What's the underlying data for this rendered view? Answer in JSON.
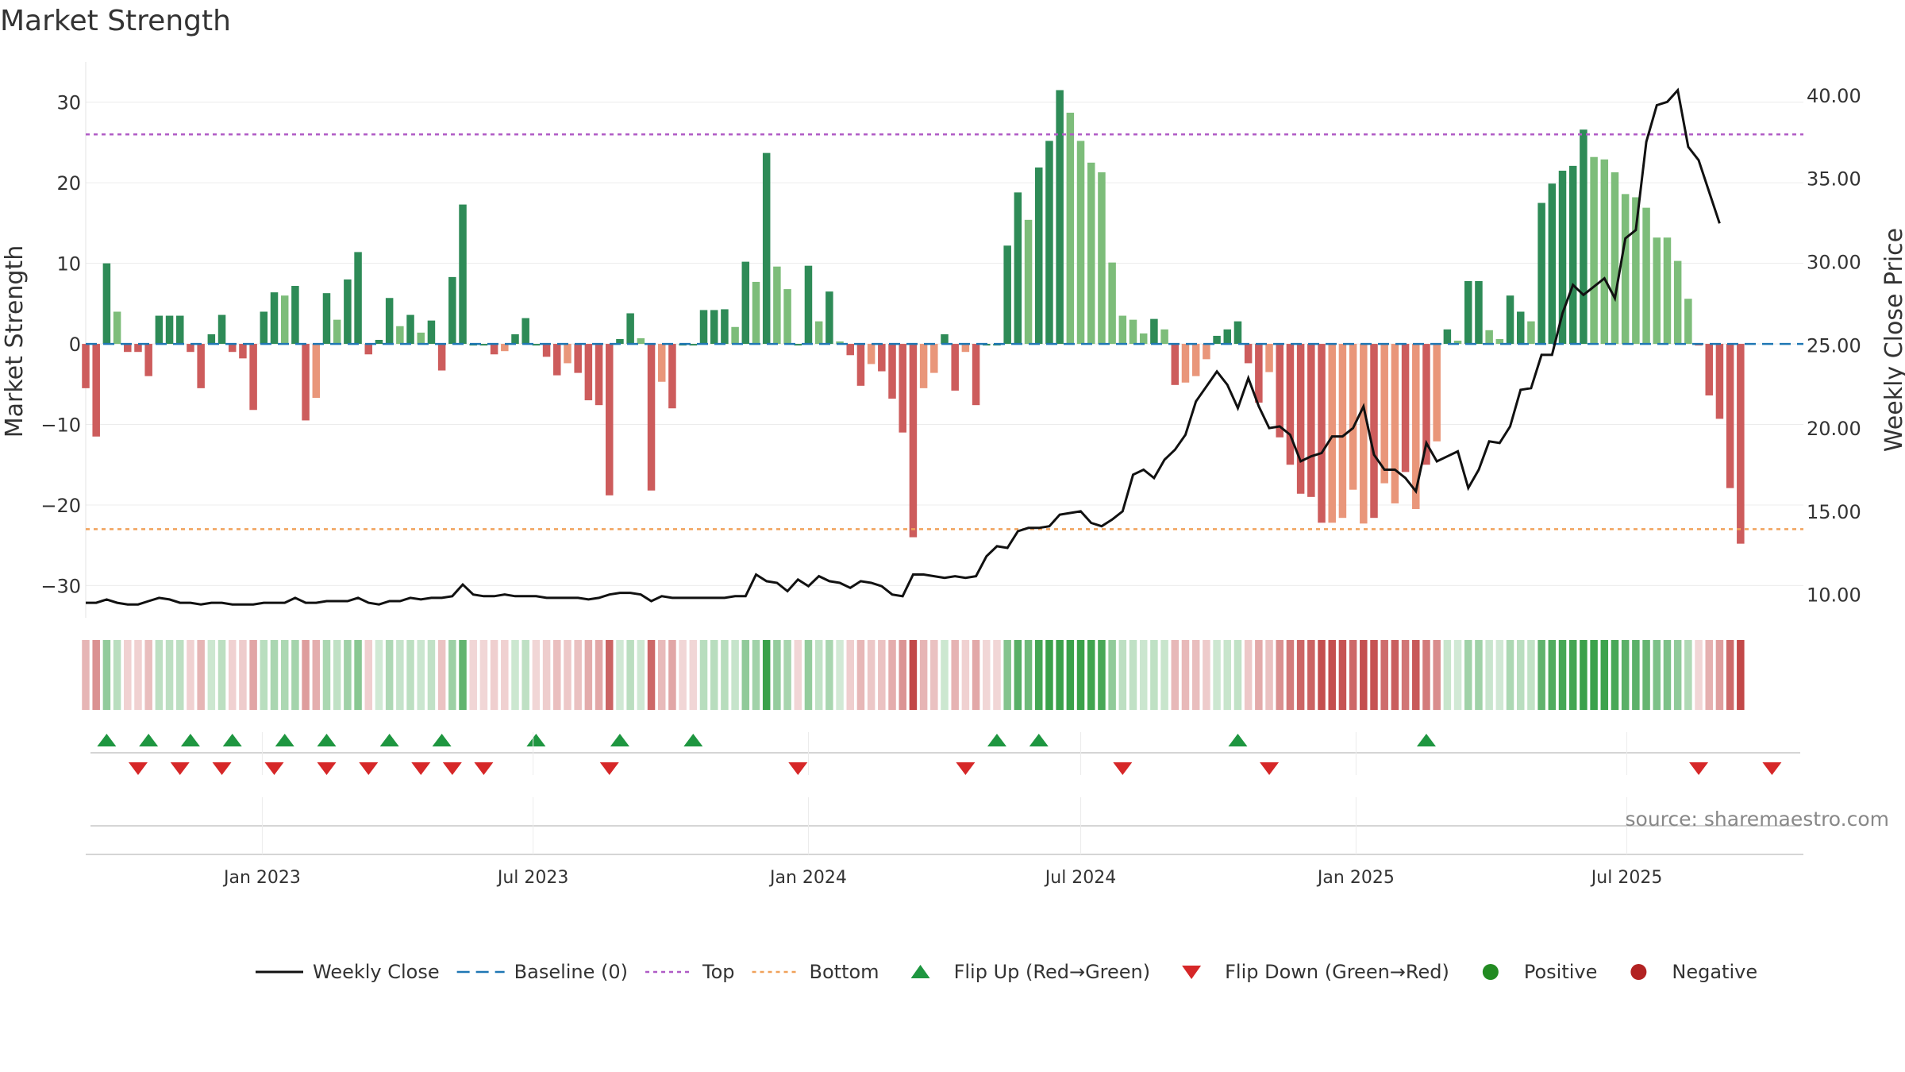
{
  "chart_data": {
    "type": "bar",
    "title": "Market Strength",
    "ylabel": "Market Strength",
    "y2label": "Weekly Close Price",
    "ylim": [
      -34,
      35
    ],
    "y2lim": [
      8.6,
      42.0
    ],
    "yticks": [
      -30,
      -20,
      -10,
      0,
      10,
      20,
      30
    ],
    "yticklabels": [
      "−30",
      "−20",
      "−10",
      "0",
      "10",
      "20",
      "30"
    ],
    "y2ticks": [
      10,
      15,
      20,
      25,
      30,
      35,
      40
    ],
    "y2ticklabels": [
      "10.00",
      "15.00",
      "20.00",
      "25.00",
      "30.00",
      "35.00",
      "40.00"
    ],
    "xrange": [
      "2022-09-05",
      "2025-10-27"
    ],
    "xticks": [
      {
        "date": "2023-01-01",
        "label": "Jan 2023"
      },
      {
        "date": "2023-07-01",
        "label": "Jul 2023"
      },
      {
        "date": "2024-01-01",
        "label": "Jan 2024"
      },
      {
        "date": "2024-07-01",
        "label": "Jul 2024"
      },
      {
        "date": "2025-01-01",
        "label": "Jan 2025"
      },
      {
        "date": "2025-07-01",
        "label": "Jul 2025"
      }
    ],
    "start_date": "2022-09-05",
    "interval_days": 7,
    "top": 26,
    "bottom": -23,
    "strength": [
      -5.5,
      -11.5,
      10,
      4,
      -1,
      -1,
      -4,
      3.5,
      3.5,
      3.5,
      -1,
      -5.5,
      1.2,
      3.6,
      -1,
      -1.8,
      -8.2,
      4,
      6.4,
      6,
      7.2,
      -9.5,
      -6.7,
      6.3,
      3,
      8,
      11.4,
      -1.3,
      0.5,
      5.7,
      2.2,
      3.6,
      1.4,
      2.9,
      -3.3,
      8.3,
      17.3,
      -0.2,
      -0.2,
      -1.3,
      -0.9,
      1.2,
      3.2,
      -0.2,
      -1.6,
      -3.9,
      -2.4,
      -3.6,
      -7,
      -7.6,
      -18.8,
      0.6,
      3.8,
      0.7,
      -18.2,
      -4.7,
      -8,
      -0.2,
      -0.2,
      4.2,
      4.2,
      4.3,
      2.1,
      10.2,
      7.7,
      23.7,
      9.6,
      6.8,
      -0.2,
      9.7,
      2.8,
      6.5,
      0.3,
      -1.4,
      -5.2,
      -2.5,
      -3.4,
      -6.8,
      -11,
      -24,
      -5.5,
      -3.6,
      1.2,
      -5.8,
      -1,
      -7.6,
      -0.2,
      -0.2,
      12.2,
      18.8,
      15.4,
      21.9,
      25.2,
      31.5,
      28.7,
      25.2,
      22.5,
      21.3,
      10.1,
      3.5,
      3,
      1.3,
      3.1,
      1.8,
      -5.1,
      -4.8,
      -4,
      -1.9,
      1,
      1.8,
      2.8,
      -2.4,
      -7.3,
      -3.5,
      -11.6,
      -15,
      -18.6,
      -19,
      -22.2,
      -22.2,
      -21.6,
      -18.1,
      -22.3,
      -21.6,
      -17.3,
      -19.8,
      -15.9,
      -20.5,
      -15,
      -12.1,
      1.8,
      0.4,
      7.8,
      7.8,
      1.7,
      0.6,
      6,
      4,
      2.8,
      17.5,
      19.9,
      21.5,
      22.1,
      26.6,
      23.2,
      22.9,
      21.3,
      18.6,
      18.2,
      16.9,
      13.2,
      13.2,
      10.3,
      5.6,
      -0.2,
      -6.4,
      -9.3,
      -17.9,
      -24.8
    ],
    "style": [
      2,
      2,
      0,
      1,
      2,
      2,
      2,
      0,
      0,
      0,
      2,
      2,
      0,
      0,
      2,
      2,
      2,
      0,
      0,
      1,
      0,
      2,
      3,
      0,
      1,
      0,
      0,
      2,
      0,
      0,
      1,
      0,
      1,
      0,
      2,
      0,
      0,
      0,
      0,
      2,
      3,
      0,
      0,
      0,
      2,
      2,
      3,
      2,
      2,
      2,
      2,
      0,
      0,
      1,
      2,
      3,
      2,
      0,
      0,
      0,
      0,
      0,
      1,
      0,
      1,
      0,
      1,
      1,
      0,
      0,
      1,
      0,
      1,
      2,
      2,
      3,
      2,
      2,
      2,
      2,
      3,
      3,
      0,
      2,
      3,
      2,
      0,
      0,
      0,
      0,
      1,
      0,
      0,
      0,
      1,
      1,
      1,
      1,
      1,
      1,
      1,
      1,
      0,
      1,
      2,
      3,
      3,
      3,
      0,
      0,
      0,
      2,
      2,
      3,
      2,
      2,
      2,
      2,
      2,
      3,
      3,
      3,
      3,
      2,
      3,
      3,
      2,
      3,
      2,
      3,
      0,
      1,
      0,
      0,
      1,
      1,
      0,
      0,
      1,
      0,
      0,
      0,
      0,
      0,
      1,
      1,
      1,
      1,
      1,
      1,
      1,
      1,
      1,
      1,
      2,
      2,
      2,
      2,
      2
    ],
    "weekly_close": [
      9.5,
      9.5,
      9.7,
      9.5,
      9.4,
      9.4,
      9.6,
      9.8,
      9.7,
      9.5,
      9.5,
      9.4,
      9.5,
      9.5,
      9.4,
      9.4,
      9.4,
      9.5,
      9.5,
      9.5,
      9.8,
      9.5,
      9.5,
      9.6,
      9.6,
      9.6,
      9.8,
      9.5,
      9.4,
      9.6,
      9.6,
      9.8,
      9.7,
      9.8,
      9.8,
      9.9,
      10.6,
      10.0,
      9.9,
      9.9,
      10.0,
      9.9,
      9.9,
      9.9,
      9.8,
      9.8,
      9.8,
      9.8,
      9.7,
      9.8,
      10.0,
      10.1,
      10.1,
      10.0,
      9.6,
      9.9,
      9.8,
      9.8,
      9.8,
      9.8,
      9.8,
      9.8,
      9.9,
      9.9,
      11.2,
      10.8,
      10.7,
      10.2,
      10.9,
      10.5,
      11.1,
      10.8,
      10.7,
      10.4,
      10.8,
      10.7,
      10.5,
      10.0,
      9.9,
      11.2,
      11.2,
      11.1,
      11.0,
      11.1,
      11.0,
      11.1,
      12.3,
      12.9,
      12.8,
      13.8,
      14.0,
      14.0,
      14.1,
      14.8,
      14.9,
      15.0,
      14.3,
      14.1,
      14.5,
      15.0,
      17.2,
      17.5,
      17.0,
      18.1,
      18.7,
      19.6,
      21.6,
      22.5,
      23.4,
      22.6,
      21.2,
      23.0,
      21.3,
      20.0,
      20.1,
      19.6,
      18.0,
      18.3,
      18.5,
      19.5,
      19.5,
      20.0,
      21.3,
      18.4,
      17.5,
      17.5,
      17.0,
      16.2,
      19.1,
      18.0,
      18.3,
      18.6,
      16.4,
      17.5,
      19.2,
      19.1,
      20.1,
      22.3,
      22.4,
      24.4,
      24.4,
      26.9,
      28.6,
      28.0,
      28.5,
      29.0,
      27.8,
      31.4,
      31.9,
      37.2,
      39.4,
      39.6,
      40.3,
      36.9,
      36.1,
      34.2,
      32.3
    ],
    "flip_up": [
      "2022-09-19",
      "2022-10-17",
      "2022-11-14",
      "2022-12-12",
      "2023-01-16",
      "2023-02-13",
      "2023-03-27",
      "2023-05-01",
      "2023-07-03",
      "2023-08-28",
      "2023-10-16",
      "2024-05-06",
      "2024-06-03",
      "2024-10-14",
      "2025-02-17"
    ],
    "flip_down": [
      "2022-10-10",
      "2022-11-07",
      "2022-12-05",
      "2023-01-09",
      "2023-02-13",
      "2023-03-13",
      "2023-04-17",
      "2023-05-08",
      "2023-05-29",
      "2023-08-21",
      "2023-12-25",
      "2024-04-15",
      "2024-07-29",
      "2024-11-04",
      "2025-08-18",
      "2025-10-06"
    ],
    "legend": [
      {
        "label": "Weekly Close",
        "kind": "line"
      },
      {
        "label": "Baseline (0)",
        "kind": "dash"
      },
      {
        "label": "Top",
        "kind": "dot-purple"
      },
      {
        "label": "Bottom",
        "kind": "dot-orange"
      },
      {
        "label": "Flip Up (Red→Green)",
        "kind": "tri-up"
      },
      {
        "label": "Flip Down (Green→Red)",
        "kind": "tri-down"
      },
      {
        "label": "Positive",
        "kind": "dot-green"
      },
      {
        "label": "Negative",
        "kind": "dot-red"
      }
    ],
    "legend_position": "bottom-center",
    "grid": true,
    "colors": {
      "pos_dark": "#2e8b57",
      "pos_light": "#7dbd7a",
      "neg_dark": "#cd5c5c",
      "neg_light": "#e9967a",
      "close_line": "#111111",
      "top_line": "#b05cc6",
      "bottom_line": "#f0a15a",
      "baseline": "#1f77b4",
      "flip_up": "#1e9640",
      "flip_down": "#d62728",
      "positive_dot": "#228b22",
      "negative_dot": "#b22222"
    }
  },
  "source": "source: sharemaestro.com"
}
